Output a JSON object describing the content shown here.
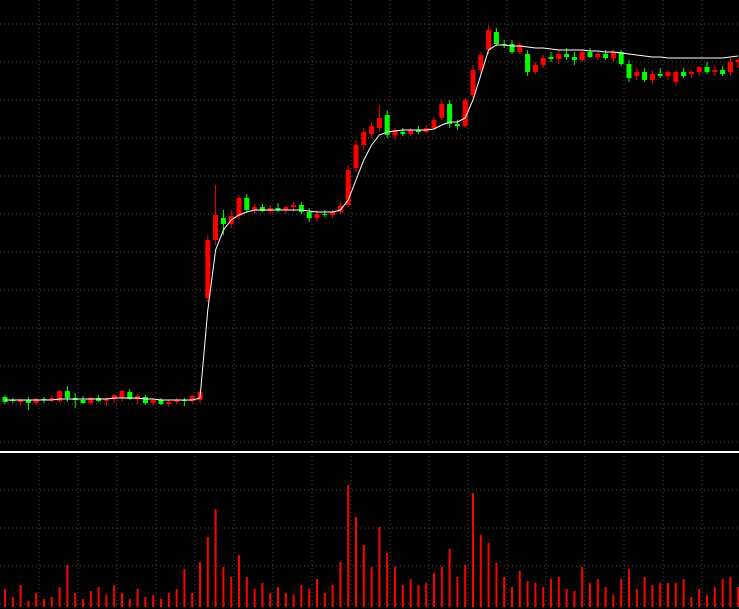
{
  "chart_data": {
    "type": "candlestick",
    "up_color": "#ff0000",
    "down_color": "#00ff00",
    "ma_color": "#ffffff",
    "volume_color": "#ff0000",
    "ylim": [
      0,
      450
    ],
    "volume_ylim": [
      0,
      130
    ],
    "ohlc": [
      [
        53,
        55,
        46,
        48
      ],
      [
        50,
        52,
        47,
        49
      ],
      [
        48,
        51,
        45,
        50
      ],
      [
        50,
        53,
        40,
        47
      ],
      [
        47,
        52,
        45,
        51
      ],
      [
        51,
        53,
        47,
        50
      ],
      [
        50,
        55,
        48,
        52
      ],
      [
        49,
        60,
        47,
        59
      ],
      [
        59,
        64,
        48,
        52
      ],
      [
        52,
        57,
        42,
        50
      ],
      [
        50,
        54,
        46,
        47
      ],
      [
        47,
        53,
        45,
        52
      ],
      [
        52,
        55,
        48,
        49
      ],
      [
        49,
        53,
        44,
        51
      ],
      [
        51,
        56,
        47,
        55
      ],
      [
        52,
        60,
        48,
        59
      ],
      [
        58,
        61,
        50,
        51
      ],
      [
        51,
        56,
        46,
        54
      ],
      [
        53,
        55,
        45,
        47
      ],
      [
        47,
        51,
        44,
        50
      ],
      [
        50,
        52,
        45,
        46
      ],
      [
        46,
        50,
        43,
        48
      ],
      [
        48,
        52,
        46,
        50
      ],
      [
        50,
        52,
        44,
        49
      ],
      [
        49,
        55,
        47,
        54
      ],
      [
        50,
        60,
        47,
        58
      ],
      [
        152,
        215,
        148,
        210
      ],
      [
        210,
        265,
        205,
        235
      ],
      [
        232,
        240,
        215,
        226
      ],
      [
        226,
        240,
        222,
        234
      ],
      [
        234,
        255,
        230,
        252
      ],
      [
        252,
        256,
        238,
        240
      ],
      [
        240,
        246,
        236,
        243
      ],
      [
        243,
        246,
        238,
        239
      ],
      [
        239,
        245,
        236,
        242
      ],
      [
        242,
        247,
        238,
        240
      ],
      [
        240,
        244,
        236,
        243
      ],
      [
        243,
        248,
        238,
        245
      ],
      [
        245,
        248,
        236,
        238
      ],
      [
        238,
        242,
        228,
        232
      ],
      [
        232,
        240,
        228,
        236
      ],
      [
        236,
        240,
        233,
        235
      ],
      [
        235,
        240,
        232,
        238
      ],
      [
        238,
        248,
        236,
        244
      ],
      [
        245,
        285,
        243,
        280
      ],
      [
        282,
        310,
        278,
        305
      ],
      [
        305,
        322,
        300,
        318
      ],
      [
        316,
        328,
        312,
        324
      ],
      [
        322,
        345,
        318,
        332
      ],
      [
        335,
        340,
        312,
        315
      ],
      [
        315,
        322,
        310,
        320
      ],
      [
        318,
        322,
        314,
        316
      ],
      [
        316,
        322,
        314,
        320
      ],
      [
        320,
        324,
        316,
        318
      ],
      [
        318,
        325,
        316,
        322
      ],
      [
        322,
        333,
        320,
        330
      ],
      [
        332,
        350,
        330,
        346
      ],
      [
        346,
        350,
        322,
        326
      ],
      [
        326,
        330,
        320,
        324
      ],
      [
        324,
        352,
        322,
        350
      ],
      [
        355,
        385,
        352,
        380
      ],
      [
        380,
        398,
        376,
        395
      ],
      [
        400,
        425,
        396,
        420
      ],
      [
        418,
        422,
        404,
        406
      ],
      [
        406,
        410,
        402,
        405
      ],
      [
        406,
        410,
        396,
        398
      ],
      [
        398,
        408,
        396,
        405
      ],
      [
        396,
        400,
        374,
        378
      ],
      [
        378,
        388,
        376,
        385
      ],
      [
        385,
        395,
        382,
        392
      ],
      [
        393,
        398,
        388,
        391
      ],
      [
        391,
        400,
        386,
        396
      ],
      [
        396,
        402,
        390,
        393
      ],
      [
        393,
        398,
        385,
        390
      ],
      [
        390,
        400,
        388,
        398
      ],
      [
        398,
        402,
        392,
        393
      ],
      [
        393,
        398,
        390,
        396
      ],
      [
        396,
        400,
        390,
        392
      ],
      [
        392,
        400,
        388,
        398
      ],
      [
        398,
        400,
        384,
        386
      ],
      [
        386,
        390,
        368,
        372
      ],
      [
        374,
        382,
        370,
        378
      ],
      [
        378,
        382,
        368,
        370
      ],
      [
        370,
        380,
        366,
        376
      ],
      [
        376,
        382,
        372,
        374
      ],
      [
        374,
        380,
        370,
        378
      ],
      [
        368,
        380,
        364,
        378
      ],
      [
        378,
        382,
        372,
        374
      ],
      [
        376,
        380,
        372,
        378
      ],
      [
        378,
        384,
        374,
        383
      ],
      [
        383,
        388,
        376,
        378
      ],
      [
        378,
        385,
        374,
        380
      ],
      [
        380,
        384,
        374,
        376
      ],
      [
        378,
        392,
        374,
        388
      ],
      [
        388,
        392,
        382,
        390
      ]
    ],
    "ma": [
      50,
      50,
      50,
      50,
      50,
      50,
      50,
      51,
      51,
      51,
      51,
      51,
      51,
      51,
      52,
      52,
      52,
      52,
      51,
      51,
      50,
      50,
      50,
      50,
      50,
      52,
      140,
      200,
      220,
      230,
      235,
      238,
      240,
      240,
      240,
      240,
      240,
      240,
      240,
      239,
      238,
      238,
      238,
      240,
      250,
      270,
      290,
      305,
      315,
      318,
      319,
      320,
      320,
      320,
      320,
      321,
      325,
      328,
      328,
      332,
      350,
      375,
      400,
      405,
      405,
      404,
      404,
      403,
      402,
      402,
      401,
      400,
      400,
      400,
      400,
      399,
      399,
      398,
      398,
      397,
      396,
      395,
      394,
      393,
      393,
      392,
      392,
      392,
      392,
      392,
      392,
      392,
      392,
      393,
      394
    ],
    "volume": [
      18,
      10,
      22,
      6,
      14,
      8,
      10,
      20,
      42,
      14,
      8,
      16,
      20,
      12,
      22,
      14,
      8,
      18,
      10,
      12,
      8,
      14,
      18,
      38,
      14,
      45,
      70,
      98,
      40,
      30,
      52,
      30,
      18,
      24,
      14,
      20,
      14,
      12,
      22,
      18,
      28,
      14,
      22,
      45,
      122,
      90,
      62,
      40,
      80,
      54,
      40,
      22,
      28,
      22,
      24,
      34,
      40,
      58,
      30,
      42,
      114,
      72,
      64,
      44,
      30,
      20,
      36,
      26,
      24,
      20,
      28,
      30,
      18,
      16,
      40,
      24,
      28,
      20,
      12,
      28,
      38,
      18,
      30,
      22,
      24,
      24,
      24,
      28,
      10,
      18,
      12,
      20,
      28,
      30,
      20
    ]
  }
}
